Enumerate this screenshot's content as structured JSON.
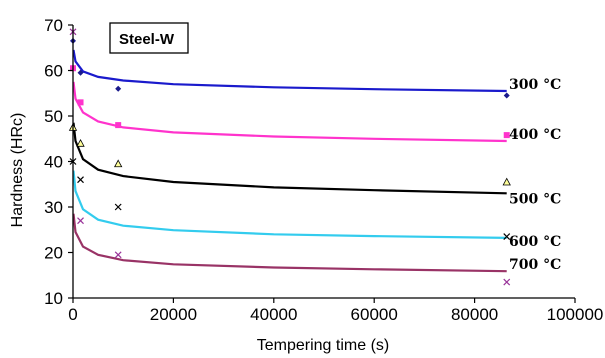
{
  "chart_data": {
    "type": "scatter",
    "title": "Steel-W",
    "xlabel": "Tempering time (s)",
    "ylabel": "Hardness (HRc)",
    "xlim": [
      0,
      100000
    ],
    "ylim": [
      10,
      70
    ],
    "xticks": [
      0,
      20000,
      40000,
      60000,
      80000,
      100000
    ],
    "yticks": [
      10,
      20,
      30,
      40,
      50,
      60,
      70
    ],
    "grid": false,
    "series": [
      {
        "name": "300°C",
        "color": "#1a1acc",
        "marker_color": "#1a1a8c",
        "marker": "diamond",
        "points": [
          [
            0,
            66.5
          ],
          [
            1500,
            59.5
          ],
          [
            9000,
            56
          ],
          [
            86400,
            54.5
          ]
        ],
        "fit": [
          [
            100,
            64.5
          ],
          [
            500,
            62
          ],
          [
            2000,
            59.8
          ],
          [
            5000,
            58.6
          ],
          [
            10000,
            57.8
          ],
          [
            20000,
            57
          ],
          [
            40000,
            56.3
          ],
          [
            60000,
            55.9
          ],
          [
            86400,
            55.5
          ]
        ]
      },
      {
        "name": "400°C",
        "color": "#ff33cc",
        "marker_color": "#ff33cc",
        "marker": "square",
        "points": [
          [
            0,
            60.5
          ],
          [
            1500,
            53
          ],
          [
            9000,
            48
          ],
          [
            86400,
            45.8
          ]
        ],
        "fit": [
          [
            100,
            57.5
          ],
          [
            500,
            53.8
          ],
          [
            2000,
            50.8
          ],
          [
            5000,
            48.8
          ],
          [
            10000,
            47.5
          ],
          [
            20000,
            46.4
          ],
          [
            40000,
            45.5
          ],
          [
            60000,
            45
          ],
          [
            86400,
            44.5
          ]
        ]
      },
      {
        "name": "500°C",
        "color": "#000000",
        "marker_color": "#000000",
        "marker": "triangle",
        "points": [
          [
            0,
            47.5
          ],
          [
            1500,
            44
          ],
          [
            9000,
            39.5
          ],
          [
            86400,
            35.5
          ]
        ],
        "fit": [
          [
            100,
            48.5
          ],
          [
            500,
            44.5
          ],
          [
            2000,
            40.5
          ],
          [
            5000,
            38.2
          ],
          [
            10000,
            36.8
          ],
          [
            20000,
            35.5
          ],
          [
            40000,
            34.3
          ],
          [
            60000,
            33.7
          ],
          [
            86400,
            33
          ]
        ]
      },
      {
        "name": "600°C",
        "color": "#33ccee",
        "marker_color": "#000000",
        "marker": "x",
        "points": [
          [
            0,
            40
          ],
          [
            1500,
            36
          ],
          [
            9000,
            30
          ],
          [
            86400,
            23.5
          ]
        ],
        "fit": [
          [
            100,
            38
          ],
          [
            500,
            33.5
          ],
          [
            2000,
            29.5
          ],
          [
            5000,
            27.2
          ],
          [
            10000,
            25.9
          ],
          [
            20000,
            24.9
          ],
          [
            40000,
            24
          ],
          [
            60000,
            23.6
          ],
          [
            86400,
            23.2
          ]
        ]
      },
      {
        "name": "700°C",
        "color": "#993366",
        "marker_color": "#993399",
        "marker": "x",
        "points": [
          [
            0,
            68.5
          ],
          [
            1500,
            27
          ],
          [
            9000,
            19.5
          ],
          [
            86400,
            13.5
          ]
        ],
        "fit": [
          [
            100,
            28.5
          ],
          [
            500,
            24.5
          ],
          [
            2000,
            21.3
          ],
          [
            5000,
            19.5
          ],
          [
            10000,
            18.3
          ],
          [
            20000,
            17.4
          ],
          [
            40000,
            16.7
          ],
          [
            60000,
            16.3
          ],
          [
            86400,
            15.9
          ]
        ]
      }
    ]
  }
}
